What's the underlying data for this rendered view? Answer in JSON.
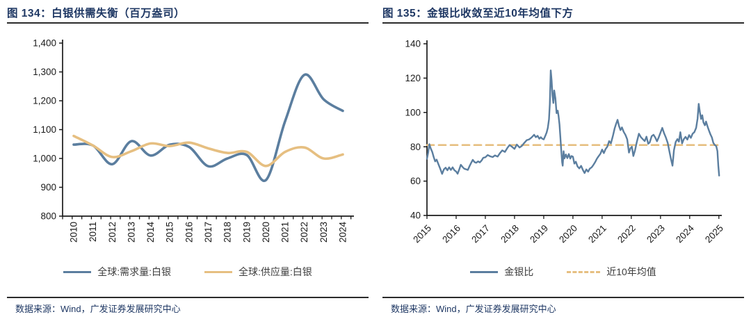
{
  "colors": {
    "title_navy": "#1f3864",
    "rule_dark": "#2b2b2b",
    "axis": "#1a1a1a",
    "tick_label": "#1a1a1a",
    "legend_label": "#3d3d3d",
    "series_blue": "#5b7e9f",
    "series_tan": "#e6bf81"
  },
  "chart_data": [
    {
      "type": "line",
      "title": "图 134：白银供需失衡（百万盎司）",
      "source": "数据来源：Wind，广发证券发展研究中心",
      "categories": [
        "2010",
        "2011",
        "2012",
        "2013",
        "2014",
        "2015",
        "2016",
        "2017",
        "2018",
        "2019",
        "2020",
        "2021",
        "2022",
        "2023",
        "2024"
      ],
      "ylim": [
        800,
        1400
      ],
      "ytick_step": 100,
      "grid": false,
      "legend_position": "bottom",
      "series": [
        {
          "name": "全球:需求量:白银",
          "color": "blue",
          "line": "solid",
          "smooth": true,
          "values": [
            1048,
            1045,
            980,
            1060,
            1010,
            1048,
            1040,
            973,
            1000,
            1012,
            925,
            1130,
            1290,
            1205,
            1165
          ]
        },
        {
          "name": "全球:供应量:白银",
          "color": "tan",
          "line": "solid",
          "smooth": true,
          "values": [
            1078,
            1045,
            1005,
            1025,
            1052,
            1043,
            1055,
            1035,
            1019,
            1023,
            974,
            1023,
            1038,
            1000,
            1014
          ]
        }
      ]
    },
    {
      "type": "line",
      "title": "图 135：金银比收敛至近10年均值下方",
      "source": "数据来源：Wind，广发证券发展研究中心",
      "xlim": [
        2015,
        2025.1
      ],
      "xticks": [
        "2015",
        "2016",
        "2017",
        "2018",
        "2019",
        "2020",
        "2021",
        "2022",
        "2023",
        "2024",
        "2025"
      ],
      "ylim": [
        40,
        140
      ],
      "ytick_step": 20,
      "grid": false,
      "legend_position": "bottom",
      "series": [
        {
          "name": "金银比",
          "color": "blue",
          "line": "solid",
          "points": [
            [
              2015.0,
              73
            ],
            [
              2015.04,
              76.5
            ],
            [
              2015.08,
              81.5
            ],
            [
              2015.13,
              79
            ],
            [
              2015.18,
              77
            ],
            [
              2015.23,
              74
            ],
            [
              2015.28,
              71.5
            ],
            [
              2015.33,
              72.5
            ],
            [
              2015.4,
              69.5
            ],
            [
              2015.46,
              67
            ],
            [
              2015.52,
              64.2
            ],
            [
              2015.58,
              66.8
            ],
            [
              2015.64,
              67.8
            ],
            [
              2015.7,
              66.3
            ],
            [
              2015.76,
              68
            ],
            [
              2015.82,
              66.5
            ],
            [
              2015.88,
              68
            ],
            [
              2015.94,
              66.3
            ],
            [
              2016.0,
              65.6
            ],
            [
              2016.05,
              64.3
            ],
            [
              2016.11,
              67
            ],
            [
              2016.16,
              69.5
            ],
            [
              2016.22,
              68.2
            ],
            [
              2016.28,
              67.2
            ],
            [
              2016.34,
              66.9
            ],
            [
              2016.4,
              66.5
            ],
            [
              2016.46,
              68.8
            ],
            [
              2016.52,
              70.8
            ],
            [
              2016.57,
              72.4
            ],
            [
              2016.63,
              71.1
            ],
            [
              2016.69,
              70.7
            ],
            [
              2016.75,
              71.5
            ],
            [
              2016.81,
              70.9
            ],
            [
              2016.87,
              72
            ],
            [
              2016.93,
              73.6
            ],
            [
              2017.0,
              73.9
            ],
            [
              2017.08,
              75.2
            ],
            [
              2017.17,
              74.4
            ],
            [
              2017.25,
              74
            ],
            [
              2017.33,
              75
            ],
            [
              2017.42,
              74.3
            ],
            [
              2017.5,
              76.3
            ],
            [
              2017.58,
              77.9
            ],
            [
              2017.67,
              77
            ],
            [
              2017.75,
              79.2
            ],
            [
              2017.83,
              81
            ],
            [
              2017.92,
              79.9
            ],
            [
              2018.0,
              78.8
            ],
            [
              2018.08,
              81.3
            ],
            [
              2018.17,
              79.6
            ],
            [
              2018.25,
              80.5
            ],
            [
              2018.33,
              82.2
            ],
            [
              2018.42,
              83.9
            ],
            [
              2018.5,
              84.3
            ],
            [
              2018.58,
              85.4
            ],
            [
              2018.67,
              87
            ],
            [
              2018.73,
              85.6
            ],
            [
              2018.79,
              86.4
            ],
            [
              2018.85,
              84.7
            ],
            [
              2018.9,
              85.6
            ],
            [
              2018.95,
              84.7
            ],
            [
              2019.0,
              84.3
            ],
            [
              2019.05,
              86.2
            ],
            [
              2019.1,
              88.3
            ],
            [
              2019.14,
              91
            ],
            [
              2019.18,
              96
            ],
            [
              2019.21,
              105
            ],
            [
              2019.24,
              124.5
            ],
            [
              2019.27,
              118.5
            ],
            [
              2019.3,
              110
            ],
            [
              2019.33,
              105.5
            ],
            [
              2019.36,
              112.8
            ],
            [
              2019.4,
              108.3
            ],
            [
              2019.44,
              99.6
            ],
            [
              2019.48,
              101
            ],
            [
              2019.51,
              97.8
            ],
            [
              2019.54,
              93
            ],
            [
              2019.57,
              86
            ],
            [
              2019.6,
              78
            ],
            [
              2019.63,
              71
            ],
            [
              2019.65,
              69
            ],
            [
              2019.68,
              77.4
            ],
            [
              2019.71,
              73.2
            ],
            [
              2019.76,
              75.5
            ],
            [
              2019.81,
              73.4
            ],
            [
              2019.86,
              75.8
            ],
            [
              2019.91,
              73.1
            ],
            [
              2019.95,
              74.6
            ],
            [
              2020.0,
              74.2
            ],
            [
              2020.05,
              70.2
            ],
            [
              2020.1,
              71.3
            ],
            [
              2020.16,
              68.5
            ],
            [
              2020.22,
              67.4
            ],
            [
              2020.28,
              68.9
            ],
            [
              2020.34,
              66.5
            ],
            [
              2020.4,
              64.7
            ],
            [
              2020.46,
              66.8
            ],
            [
              2020.52,
              65.5
            ],
            [
              2020.58,
              67.3
            ],
            [
              2020.64,
              68
            ],
            [
              2020.7,
              69.4
            ],
            [
              2020.76,
              71
            ],
            [
              2020.82,
              73
            ],
            [
              2020.88,
              74.5
            ],
            [
              2020.94,
              75.9
            ],
            [
              2021.0,
              78.4
            ],
            [
              2021.06,
              76.3
            ],
            [
              2021.12,
              78.7
            ],
            [
              2021.18,
              80.1
            ],
            [
              2021.24,
              83.3
            ],
            [
              2021.3,
              82
            ],
            [
              2021.37,
              86.3
            ],
            [
              2021.43,
              90.7
            ],
            [
              2021.48,
              93.3
            ],
            [
              2021.53,
              95.7
            ],
            [
              2021.58,
              92.1
            ],
            [
              2021.63,
              89.7
            ],
            [
              2021.68,
              91.3
            ],
            [
              2021.74,
              88.7
            ],
            [
              2021.8,
              86.9
            ],
            [
              2021.86,
              84.3
            ],
            [
              2021.92,
              76.6
            ],
            [
              2021.97,
              79.1
            ],
            [
              2022.02,
              80.1
            ],
            [
              2022.07,
              74.6
            ],
            [
              2022.13,
              78.1
            ],
            [
              2022.19,
              82.8
            ],
            [
              2022.26,
              87.6
            ],
            [
              2022.33,
              85.6
            ],
            [
              2022.4,
              84.3
            ],
            [
              2022.46,
              83.3
            ],
            [
              2022.52,
              85.9
            ],
            [
              2022.58,
              81.8
            ],
            [
              2022.63,
              82.5
            ],
            [
              2022.7,
              86.2
            ],
            [
              2022.76,
              87
            ],
            [
              2022.82,
              85.4
            ],
            [
              2022.88,
              83.2
            ],
            [
              2022.94,
              85.5
            ],
            [
              2023.0,
              88.2
            ],
            [
              2023.06,
              91
            ],
            [
              2023.12,
              88
            ],
            [
              2023.18,
              85.6
            ],
            [
              2023.25,
              82.2
            ],
            [
              2023.32,
              76
            ],
            [
              2023.37,
              72
            ],
            [
              2023.41,
              69
            ],
            [
              2023.46,
              78
            ],
            [
              2023.52,
              82.8
            ],
            [
              2023.58,
              84.5
            ],
            [
              2023.63,
              83
            ],
            [
              2023.68,
              88.5
            ],
            [
              2023.74,
              82
            ],
            [
              2023.8,
              84.5
            ],
            [
              2023.86,
              85.8
            ],
            [
              2023.92,
              84.2
            ],
            [
              2023.98,
              86.8
            ],
            [
              2024.04,
              85.2
            ],
            [
              2024.1,
              87.6
            ],
            [
              2024.16,
              88.5
            ],
            [
              2024.22,
              91
            ],
            [
              2024.27,
              96.5
            ],
            [
              2024.31,
              105
            ],
            [
              2024.35,
              100.2
            ],
            [
              2024.39,
              96.2
            ],
            [
              2024.43,
              98.4
            ],
            [
              2024.47,
              94.2
            ],
            [
              2024.52,
              92.5
            ],
            [
              2024.56,
              94.7
            ],
            [
              2024.61,
              92
            ],
            [
              2024.66,
              89.5
            ],
            [
              2024.71,
              87.3
            ],
            [
              2024.76,
              85.5
            ],
            [
              2024.81,
              82.3
            ],
            [
              2024.86,
              81
            ],
            [
              2024.91,
              80.4
            ],
            [
              2024.95,
              77.5
            ],
            [
              2024.98,
              69
            ],
            [
              2025.01,
              63.2
            ]
          ]
        },
        {
          "name": "近10年均值",
          "color": "tan",
          "line": "dashed",
          "points": [
            [
              2015.0,
              81
            ],
            [
              2025.05,
              81
            ]
          ]
        }
      ]
    }
  ]
}
